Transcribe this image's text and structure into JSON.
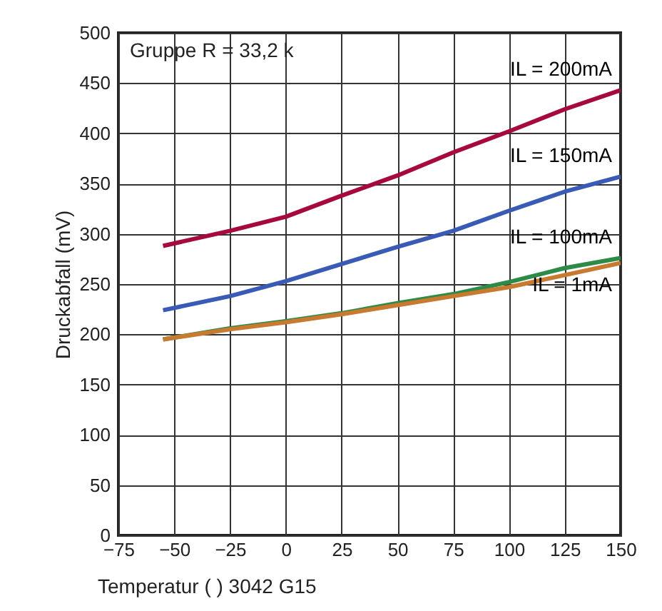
{
  "chart_data": {
    "type": "line",
    "xlabel": "Temperatur (   ) 3042 G15",
    "ylabel": "Druckabfall (mV)",
    "x": [
      -55,
      -25,
      0,
      25,
      50,
      75,
      100,
      125,
      150
    ],
    "series": [
      {
        "name": "IL = 200mA",
        "color": "#a6093d",
        "values": [
          288,
          303,
          317,
          338,
          358,
          381,
          402,
          424,
          443
        ]
      },
      {
        "name": "IL = 150mA",
        "color": "#3a5bb5",
        "values": [
          224,
          238,
          253,
          270,
          287,
          303,
          323,
          342,
          357
        ]
      },
      {
        "name": "IL = 100mA",
        "color": "#2e8b47",
        "values": [
          195,
          206,
          213,
          221,
          231,
          240,
          252,
          266,
          276
        ]
      },
      {
        "name": "IL = 1mA",
        "color": "#c77a30",
        "values": [
          195,
          205,
          212,
          220,
          229,
          238,
          247,
          259,
          271
        ]
      }
    ],
    "xlim": [
      -75,
      150
    ],
    "xticks": [
      -75,
      -50,
      -25,
      0,
      25,
      50,
      75,
      100,
      125,
      150
    ],
    "ylim": [
      0,
      500
    ],
    "yticks": [
      0,
      50,
      100,
      150,
      200,
      250,
      300,
      350,
      400,
      450,
      500
    ],
    "annotations": [
      "Gruppe R = 33,2 k"
    ],
    "grid": true,
    "legend": false,
    "marker": "none",
    "line_style": "solid"
  }
}
